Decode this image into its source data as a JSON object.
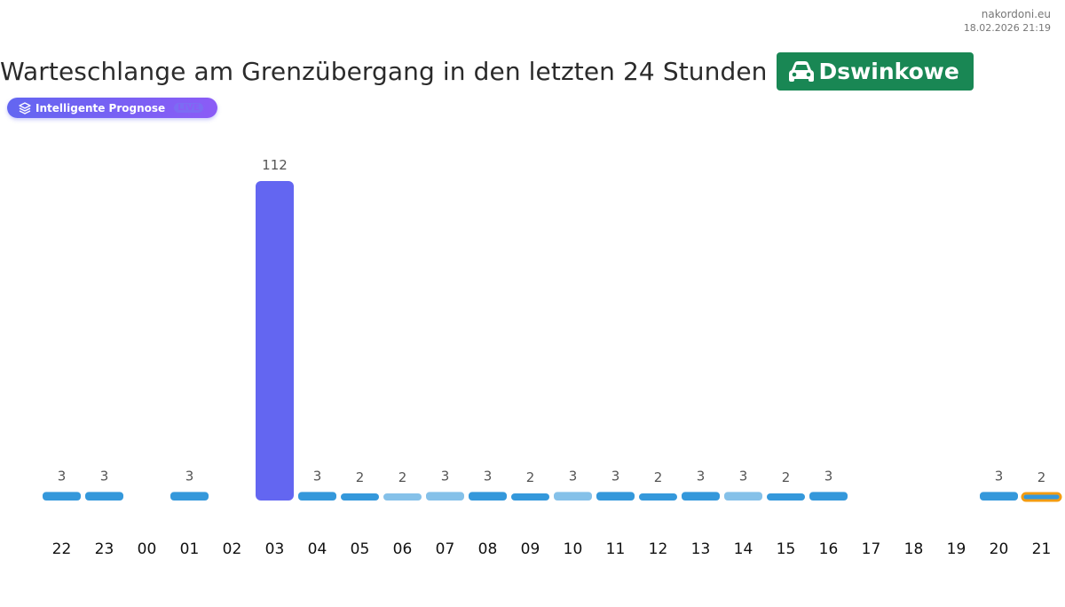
{
  "brand": {
    "site": "nakordoni.eu",
    "timestamp": "18.02.2026 21:19"
  },
  "header": {
    "title": "Warteschlange am Grenzübergang in den letzten 24 Stunden",
    "border_name": "Dswinkowe",
    "border_icon": "car-icon",
    "badge_color": "#198754"
  },
  "forecast_button": {
    "label": "Intelligente Prognose",
    "tag": "LIVE",
    "icon": "layers-icon"
  },
  "colors": {
    "bar": "#3498db",
    "bar_light": "#85c1e9",
    "peak": "#6366f1",
    "current_outline": "#f39c12"
  },
  "chart_data": {
    "type": "bar",
    "categories": [
      "22",
      "23",
      "00",
      "01",
      "02",
      "03",
      "04",
      "05",
      "06",
      "07",
      "08",
      "09",
      "10",
      "11",
      "12",
      "13",
      "14",
      "15",
      "16",
      "17",
      "18",
      "19",
      "20",
      "21"
    ],
    "values": [
      3,
      3,
      null,
      3,
      null,
      112,
      3,
      2,
      2,
      3,
      3,
      2,
      3,
      3,
      2,
      3,
      3,
      2,
      3,
      null,
      null,
      null,
      3,
      2
    ],
    "bar_style": [
      "normal",
      "normal",
      "none",
      "normal",
      "none",
      "peak",
      "normal",
      "normal",
      "light",
      "light",
      "normal",
      "normal",
      "light",
      "normal",
      "normal",
      "normal",
      "light",
      "normal",
      "normal",
      "none",
      "none",
      "none",
      "normal",
      "current"
    ],
    "ylim": [
      0,
      112
    ],
    "grid": false,
    "legend": "none"
  }
}
